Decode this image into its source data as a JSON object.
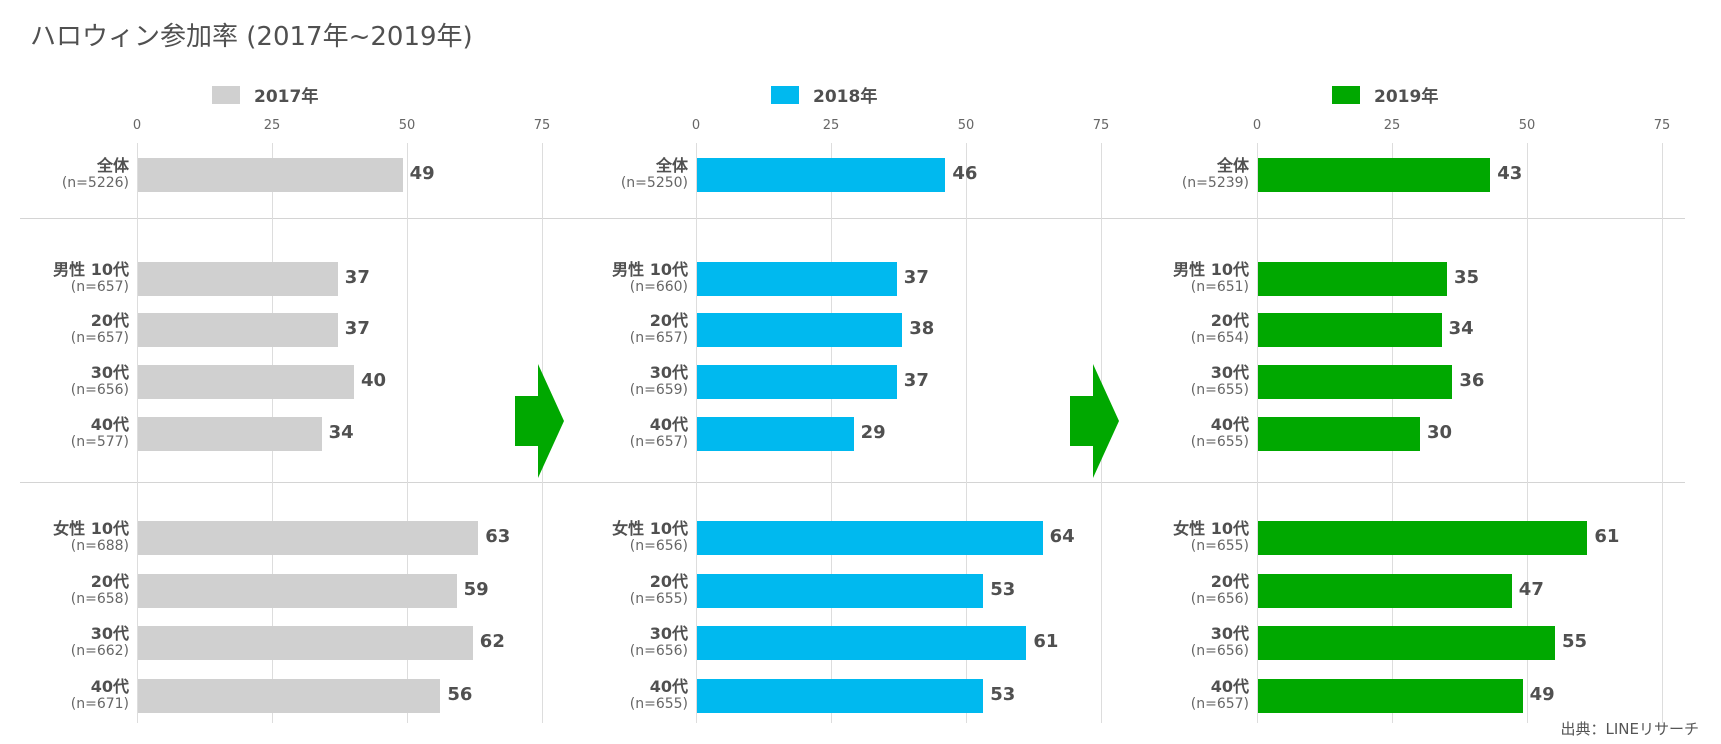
{
  "title": "ハロウィン参加率 (2017年~2019年)",
  "source": "出典：LINEリサーチ",
  "chart_data": {
    "type": "bar",
    "title": "ハロウィン参加率 (2017年~2019年)",
    "xlim": [
      0,
      75
    ],
    "ticks": [
      "0",
      "25",
      "50",
      "75"
    ],
    "panels": [
      {
        "name": "2017年",
        "color": "#d0d0d0",
        "rows": [
          {
            "group": "全体",
            "n": "(n=5226)",
            "value": 49
          },
          {
            "group": "男性 10代",
            "n": "(n=657)",
            "value": 37
          },
          {
            "group": "20代",
            "n": "(n=657)",
            "value": 37
          },
          {
            "group": "30代",
            "n": "(n=656)",
            "value": 40
          },
          {
            "group": "40代",
            "n": "(n=577)",
            "value": 34
          },
          {
            "group": "女性 10代",
            "n": "(n=688)",
            "value": 63
          },
          {
            "group": "20代",
            "n": "(n=658)",
            "value": 59
          },
          {
            "group": "30代",
            "n": "(n=662)",
            "value": 62
          },
          {
            "group": "40代",
            "n": "(n=671)",
            "value": 56
          }
        ]
      },
      {
        "name": "2018年",
        "color": "#00b9ef",
        "rows": [
          {
            "group": "全体",
            "n": "(n=5250)",
            "value": 46
          },
          {
            "group": "男性 10代",
            "n": "(n=660)",
            "value": 37
          },
          {
            "group": "20代",
            "n": "(n=657)",
            "value": 38
          },
          {
            "group": "30代",
            "n": "(n=659)",
            "value": 37
          },
          {
            "group": "40代",
            "n": "(n=657)",
            "value": 29
          },
          {
            "group": "女性 10代",
            "n": "(n=656)",
            "value": 64
          },
          {
            "group": "20代",
            "n": "(n=655)",
            "value": 53
          },
          {
            "group": "30代",
            "n": "(n=656)",
            "value": 61
          },
          {
            "group": "40代",
            "n": "(n=655)",
            "value": 53
          }
        ]
      },
      {
        "name": "2019年",
        "color": "#00a800",
        "rows": [
          {
            "group": "全体",
            "n": "(n=5239)",
            "value": 43
          },
          {
            "group": "男性 10代",
            "n": "(n=651)",
            "value": 35
          },
          {
            "group": "20代",
            "n": "(n=654)",
            "value": 34
          },
          {
            "group": "30代",
            "n": "(n=655)",
            "value": 36
          },
          {
            "group": "40代",
            "n": "(n=655)",
            "value": 30
          },
          {
            "group": "女性 10代",
            "n": "(n=655)",
            "value": 61
          },
          {
            "group": "20代",
            "n": "(n=656)",
            "value": 47
          },
          {
            "group": "30代",
            "n": "(n=656)",
            "value": 55
          },
          {
            "group": "40代",
            "n": "(n=657)",
            "value": 49
          }
        ]
      }
    ]
  }
}
